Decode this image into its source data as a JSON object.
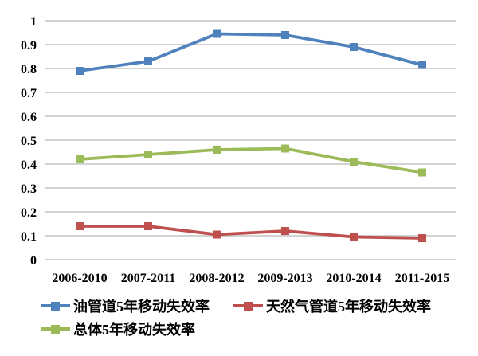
{
  "figure": {
    "background": "#ffffff"
  },
  "colors": {
    "gridline": "#c3c3c3",
    "axis_text": "#000000",
    "legend_text": "#000000",
    "oil_series": "#4F81BD",
    "gas_series": "#C0504D",
    "overall_series": "#9BBB59"
  },
  "chart_data": {
    "type": "line",
    "title": "",
    "xlabel": "",
    "ylabel": "",
    "categories": [
      "2006-2010",
      "2007-2011",
      "2008-2012",
      "2009-2013",
      "2010-2014",
      "2011-2015"
    ],
    "series": [
      {
        "name": "油管道5年移动失效率",
        "color": "#4F81BD",
        "marker": "square",
        "values": [
          0.79,
          0.83,
          0.945,
          0.94,
          0.89,
          0.815
        ]
      },
      {
        "name": "天然气管道5年移动失效率",
        "color": "#C0504D",
        "marker": "square",
        "values": [
          0.14,
          0.14,
          0.105,
          0.12,
          0.095,
          0.09
        ]
      },
      {
        "name": "总体5年移动失效率",
        "color": "#9BBB59",
        "marker": "square",
        "values": [
          0.42,
          0.44,
          0.46,
          0.465,
          0.41,
          0.365
        ]
      }
    ],
    "ylim": [
      0,
      1
    ],
    "ytick_step": 0.1,
    "ytick_labels": [
      "0",
      "0.1",
      "0.2",
      "0.3",
      "0.4",
      "0.5",
      "0.6",
      "0.7",
      "0.8",
      "0.9",
      "1"
    ],
    "grid": true,
    "grid_axis": "y",
    "legend_position": "bottom"
  }
}
